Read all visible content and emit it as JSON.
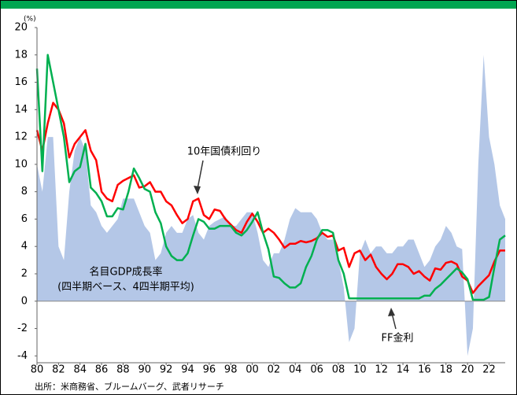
{
  "chart_data": {
    "type": "line",
    "y_unit": "(%)",
    "source": "出所：米商務省、ブルームバーグ、武者リサーチ",
    "annotations": [
      "(四半期ベース、4四半期平均)"
    ],
    "x": [
      1980,
      1980.5,
      1981,
      1981.5,
      1982,
      1982.5,
      1983,
      1983.5,
      1984,
      1984.5,
      1985,
      1985.5,
      1986,
      1986.5,
      1987,
      1987.5,
      1988,
      1988.5,
      1989,
      1989.5,
      1990,
      1990.5,
      1991,
      1991.5,
      1992,
      1992.5,
      1993,
      1993.5,
      1994,
      1994.5,
      1995,
      1995.5,
      1996,
      1996.5,
      1997,
      1997.5,
      1998,
      1998.5,
      1999,
      1999.5,
      2000,
      2000.5,
      2001,
      2001.5,
      2002,
      2002.5,
      2003,
      2003.5,
      2004,
      2004.5,
      2005,
      2005.5,
      2006,
      2006.5,
      2007,
      2007.5,
      2008,
      2008.5,
      2009,
      2009.5,
      2010,
      2010.5,
      2011,
      2011.5,
      2012,
      2012.5,
      2013,
      2013.5,
      2014,
      2014.5,
      2015,
      2015.5,
      2016,
      2016.5,
      2017,
      2017.5,
      2018,
      2018.5,
      2019,
      2019.5,
      2020,
      2020.5,
      2021,
      2021.5,
      2022,
      2022.5,
      2023,
      2023.5
    ],
    "series": [
      {
        "name": "名目GDP成長率",
        "style": "area",
        "color": "#b4c7e7",
        "values": [
          10,
          8,
          12,
          12,
          4,
          3,
          8,
          11,
          12,
          11,
          7,
          6.5,
          5.5,
          5,
          5.5,
          6,
          7.5,
          7.5,
          7.5,
          6.5,
          5.5,
          5,
          3,
          3.5,
          5,
          5.5,
          5,
          5,
          6,
          6.3,
          5,
          4.5,
          5.5,
          5.8,
          6,
          6.2,
          5.5,
          5.5,
          6,
          6.5,
          6.5,
          5,
          3,
          2.5,
          3.5,
          3.5,
          4.5,
          6,
          6.8,
          6.5,
          6.5,
          6.5,
          6,
          5,
          4.5,
          4.5,
          3,
          1,
          -3,
          -2,
          3.5,
          4.5,
          3.5,
          4,
          4,
          3.5,
          3.5,
          4,
          4,
          4.5,
          4.5,
          3.5,
          2.5,
          3,
          4,
          4.5,
          5.5,
          5,
          4,
          3.8,
          -4,
          -2,
          10,
          18,
          12,
          10,
          7,
          6
        ]
      },
      {
        "name": "10年国債利回り",
        "style": "line",
        "color": "#ff0000",
        "values": [
          12.5,
          11,
          13,
          14.5,
          14,
          13,
          10.5,
          11.5,
          12,
          12.5,
          11,
          10.3,
          8,
          7.5,
          7.3,
          8.5,
          8.8,
          9,
          9.2,
          8.3,
          8.4,
          8.7,
          8,
          8,
          7.3,
          7,
          6.3,
          5.7,
          6,
          7.3,
          7.5,
          6.3,
          6,
          6.7,
          6.6,
          6,
          5.6,
          5.2,
          5,
          5.8,
          6.4,
          5.8,
          5,
          5.3,
          5,
          4.5,
          3.9,
          4.2,
          4.2,
          4.4,
          4.3,
          4.4,
          4.6,
          5,
          4.7,
          4.8,
          3.7,
          3.9,
          2.5,
          3.5,
          3.7,
          3,
          3.4,
          2.5,
          2,
          1.6,
          2,
          2.7,
          2.7,
          2.5,
          2,
          2.2,
          1.8,
          1.5,
          2.4,
          2.3,
          2.8,
          2.9,
          2.7,
          1.8,
          1.5,
          0.6,
          1.1,
          1.5,
          1.9,
          2.9,
          3.7,
          3.7
        ]
      },
      {
        "name": "FF金利",
        "style": "line",
        "color": "#00b050",
        "values": [
          17,
          9.5,
          18,
          16,
          14,
          12,
          8.7,
          9.5,
          9.8,
          11.5,
          8.3,
          7.9,
          7.3,
          6.2,
          6.2,
          6.8,
          6.7,
          8,
          9.7,
          9,
          8.2,
          8,
          6.5,
          5.7,
          4,
          3.3,
          3,
          3,
          3.5,
          4.8,
          6,
          5.8,
          5.3,
          5.3,
          5.5,
          5.5,
          5.5,
          5,
          4.8,
          5.2,
          5.8,
          6.5,
          5,
          3.8,
          1.8,
          1.7,
          1.3,
          1,
          1,
          1.3,
          2.5,
          3.3,
          4.5,
          5.2,
          5.2,
          5,
          3,
          2,
          0.2,
          0.2,
          0.2,
          0.2,
          0.2,
          0.2,
          0.2,
          0.2,
          0.2,
          0.2,
          0.2,
          0.2,
          0.2,
          0.2,
          0.4,
          0.4,
          0.9,
          1.2,
          1.6,
          2,
          2.4,
          2.1,
          1.6,
          0.1,
          0.1,
          0.1,
          0.3,
          2.5,
          4.5,
          4.8
        ]
      }
    ],
    "xlim": [
      1980,
      2023.5
    ],
    "ylim": [
      -4.5,
      20
    ],
    "yticks": [
      -4,
      -2,
      0,
      2,
      4,
      6,
      8,
      10,
      12,
      14,
      16,
      18,
      20
    ],
    "xticks": [
      {
        "value": 1980,
        "label": "80"
      },
      {
        "value": 1982,
        "label": "82"
      },
      {
        "value": 1984,
        "label": "84"
      },
      {
        "value": 1986,
        "label": "86"
      },
      {
        "value": 1988,
        "label": "88"
      },
      {
        "value": 1990,
        "label": "90"
      },
      {
        "value": 1992,
        "label": "92"
      },
      {
        "value": 1994,
        "label": "94"
      },
      {
        "value": 1996,
        "label": "96"
      },
      {
        "value": 1998,
        "label": "98"
      },
      {
        "value": 2000,
        "label": "00"
      },
      {
        "value": 2002,
        "label": "02"
      },
      {
        "value": 2004,
        "label": "04"
      },
      {
        "value": 2006,
        "label": "06"
      },
      {
        "value": 2008,
        "label": "08"
      },
      {
        "value": 2010,
        "label": "10"
      },
      {
        "value": 2012,
        "label": "12"
      },
      {
        "value": 2014,
        "label": "14"
      },
      {
        "value": 2016,
        "label": "16"
      },
      {
        "value": 2018,
        "label": "18"
      },
      {
        "value": 2020,
        "label": "20"
      },
      {
        "value": 2022,
        "label": "22"
      }
    ]
  }
}
